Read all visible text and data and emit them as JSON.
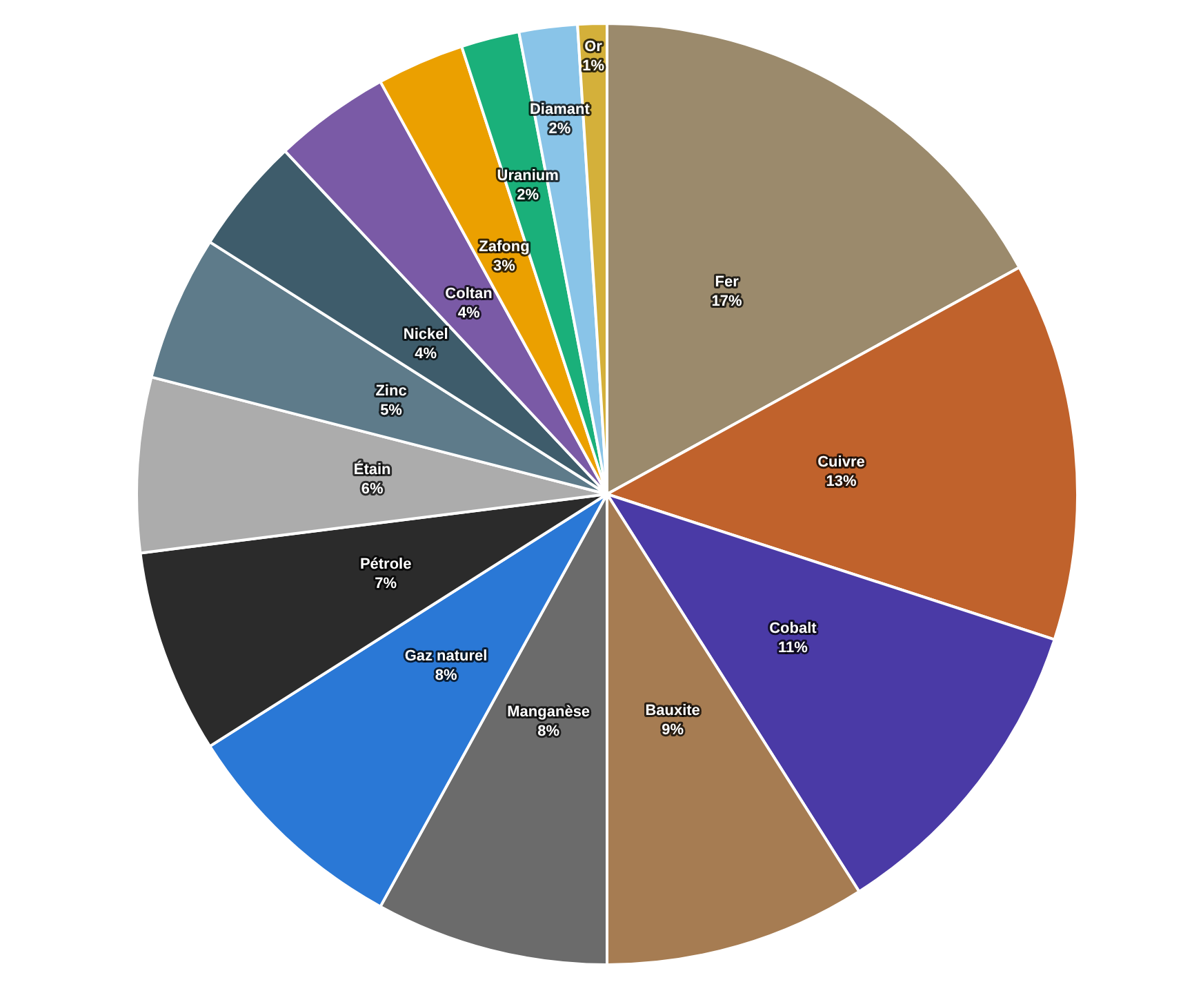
{
  "chart_data": {
    "type": "pie",
    "categories": [
      "Fer",
      "Cuivre",
      "Cobalt",
      "Bauxite",
      "Manganèse",
      "Gaz naturel",
      "Pétrole",
      "Étain",
      "Zinc",
      "Nickel",
      "Coltan",
      "Zafong",
      "Uranium",
      "Diamant",
      "Or"
    ],
    "values": [
      17,
      13,
      11,
      9,
      8,
      8,
      7,
      6,
      5,
      4,
      4,
      3,
      2,
      2,
      1
    ],
    "colors": [
      "#9b8a6c",
      "#c0622c",
      "#4a3aa6",
      "#a67c52",
      "#6b6b6b",
      "#2a78d6",
      "#2b2b2b",
      "#acacac",
      "#5e7b8a",
      "#3e5c6b",
      "#7a5aa6",
      "#eba000",
      "#1ab07a",
      "#89c4e8",
      "#d4b03a"
    ],
    "value_labels": [
      "17%",
      "13%",
      "11%",
      "9%",
      "8%",
      "8%",
      "7%",
      "6%",
      "5%",
      "4%",
      "4%",
      "3%",
      "2%",
      "2%",
      "1%"
    ],
    "legend": false
  }
}
